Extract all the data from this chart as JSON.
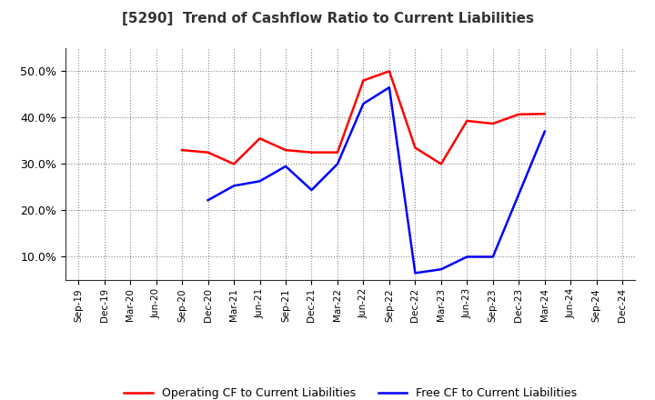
{
  "title": "[5290]  Trend of Cashflow Ratio to Current Liabilities",
  "x_labels": [
    "Sep-19",
    "Dec-19",
    "Mar-20",
    "Jun-20",
    "Sep-20",
    "Dec-20",
    "Mar-21",
    "Jun-21",
    "Sep-21",
    "Dec-21",
    "Mar-22",
    "Jun-22",
    "Sep-22",
    "Dec-22",
    "Mar-23",
    "Jun-23",
    "Sep-23",
    "Dec-23",
    "Mar-24",
    "Jun-24",
    "Sep-24",
    "Dec-24"
  ],
  "operating_cf": [
    null,
    null,
    null,
    null,
    0.33,
    0.325,
    0.3,
    0.355,
    0.33,
    0.325,
    0.325,
    0.48,
    0.5,
    0.335,
    0.3,
    0.393,
    0.387,
    0.407,
    0.408,
    null,
    null,
    null
  ],
  "free_cf": [
    null,
    null,
    null,
    null,
    null,
    0.222,
    0.253,
    0.263,
    0.295,
    0.244,
    0.3,
    0.43,
    0.465,
    0.065,
    0.073,
    0.1,
    0.1,
    null,
    0.37,
    null,
    null,
    null
  ],
  "ylim": [
    0.05,
    0.55
  ],
  "yticks": [
    0.1,
    0.2,
    0.3,
    0.4,
    0.5
  ],
  "operating_color": "#ff0000",
  "free_color": "#0000ff",
  "background_color": "#ffffff",
  "grid_color": "#888888",
  "legend_labels": [
    "Operating CF to Current Liabilities",
    "Free CF to Current Liabilities"
  ]
}
